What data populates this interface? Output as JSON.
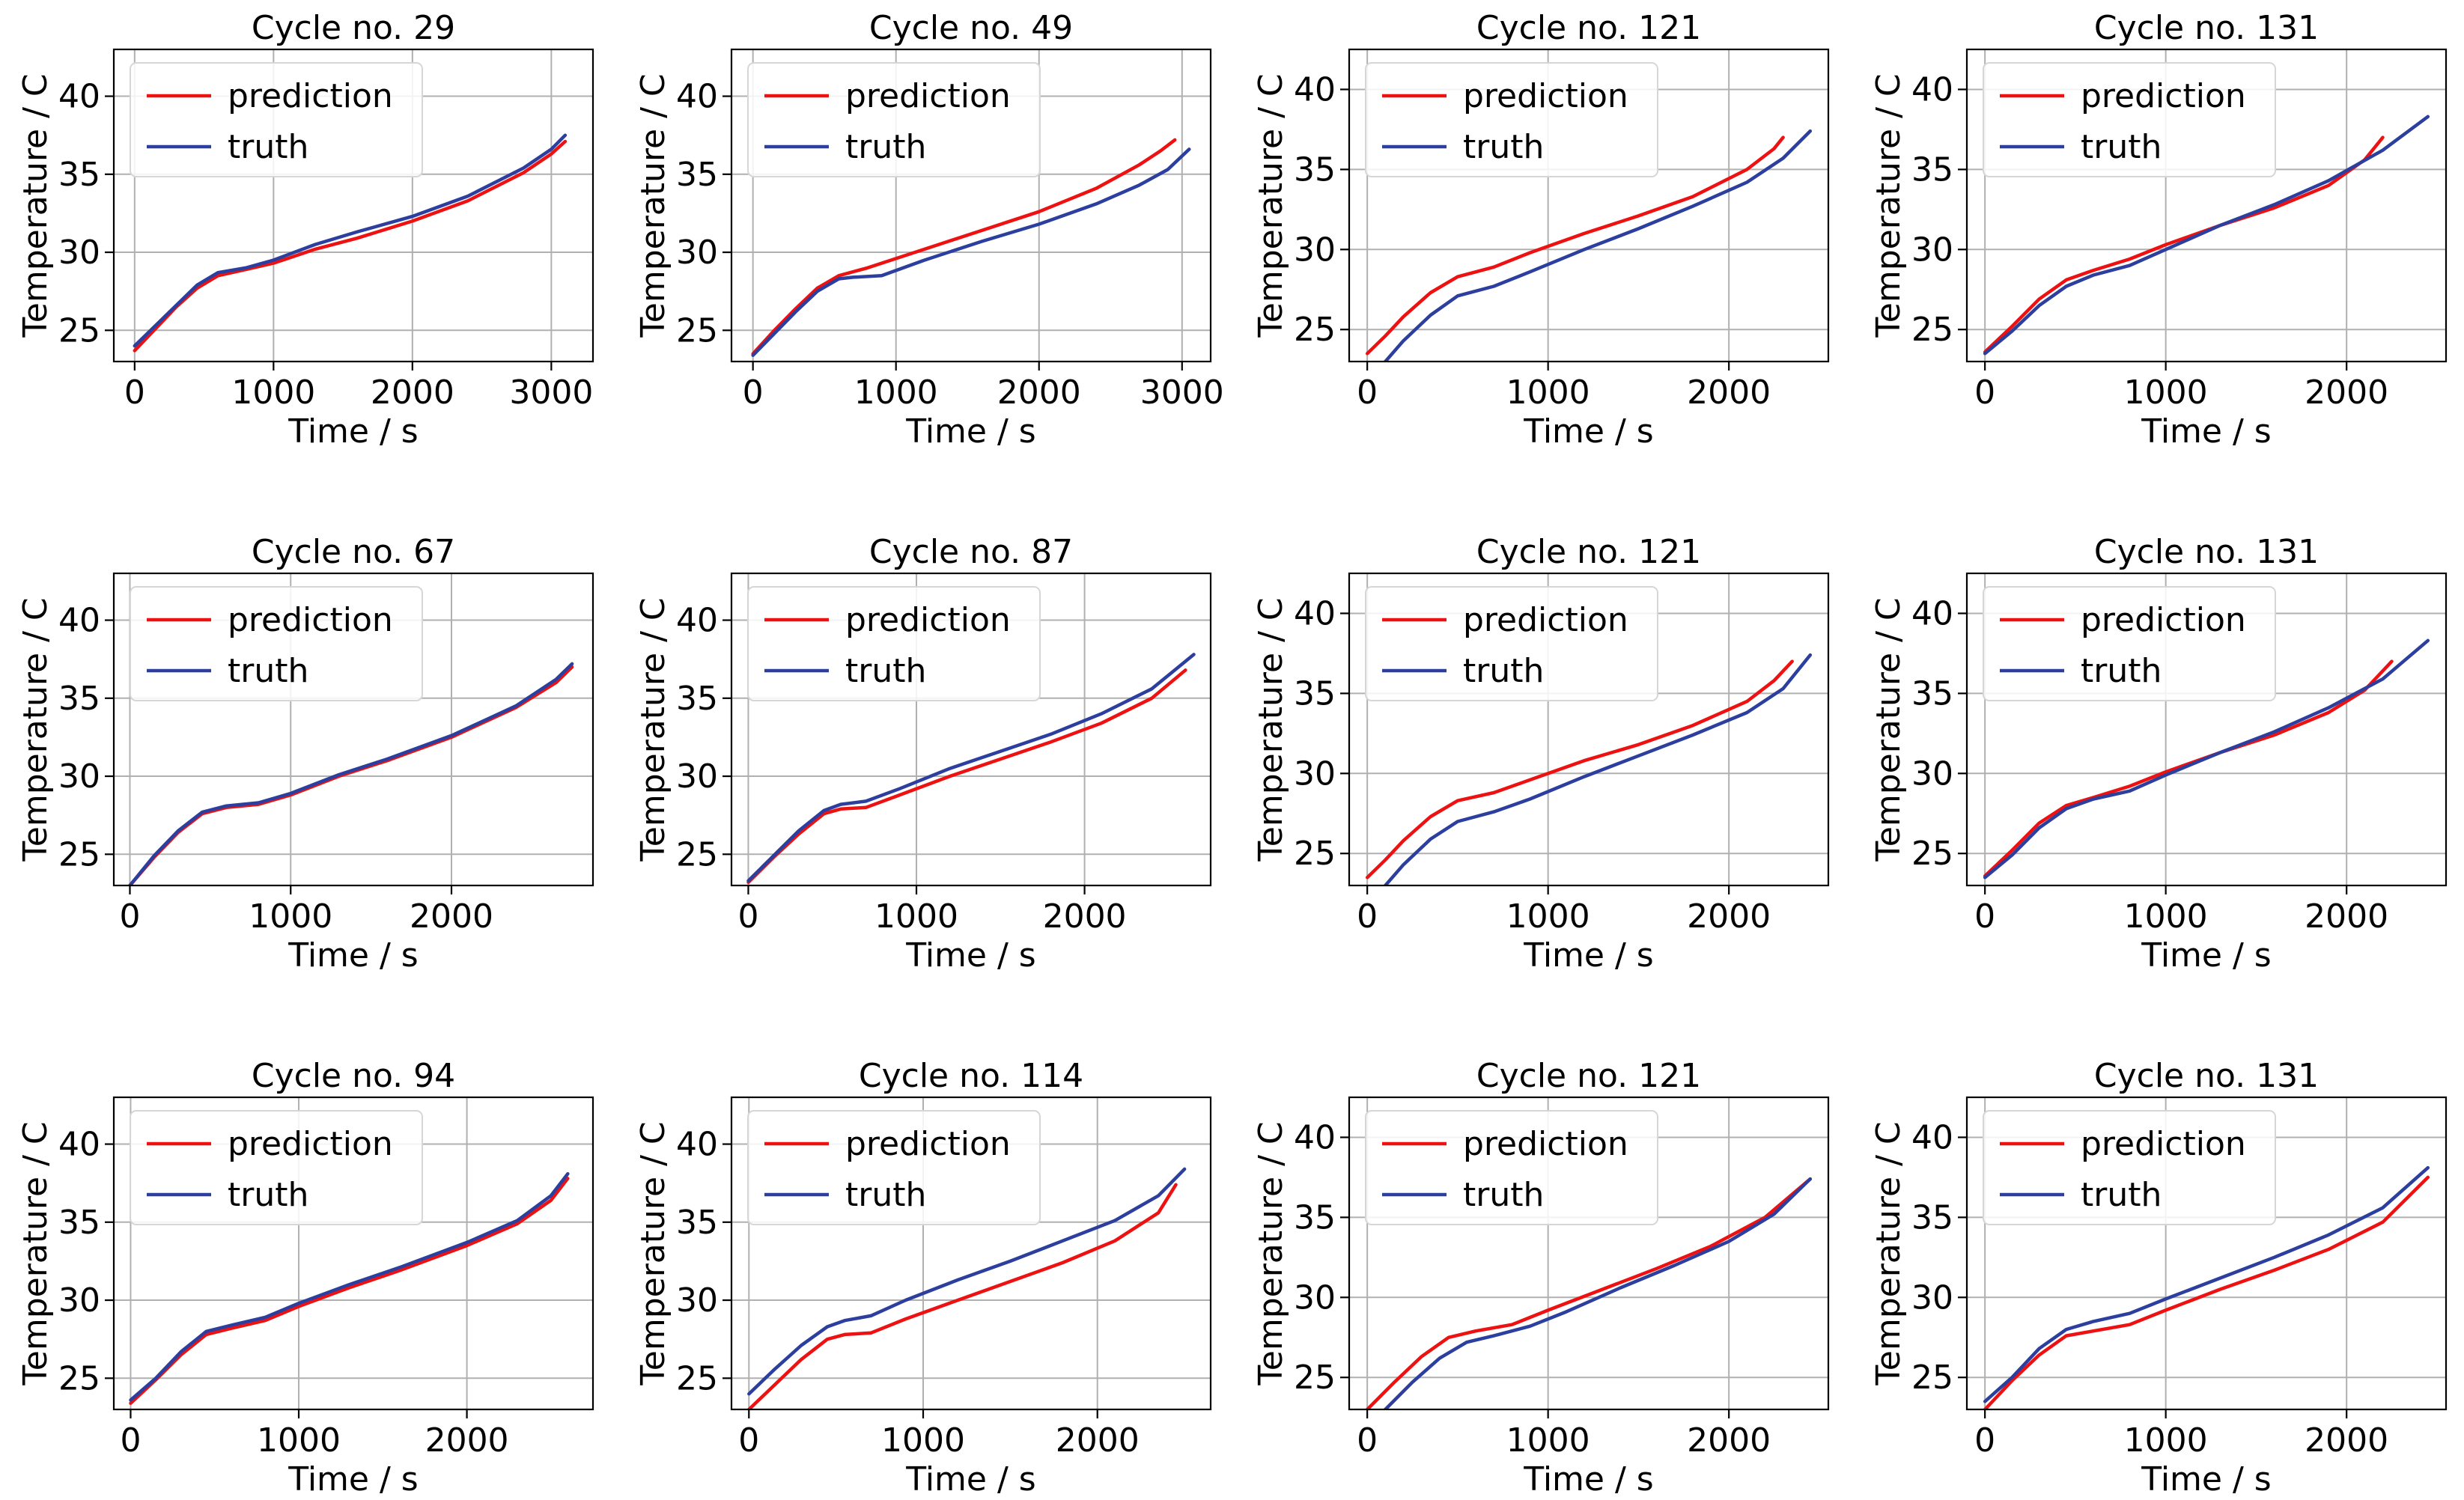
{
  "figure": {
    "rows": 3,
    "cols": 4
  },
  "colors": {
    "prediction": "#ee1111",
    "truth": "#2c3f9e",
    "grid": "#b0b0b0"
  },
  "chart_data": [
    {
      "type": "line",
      "title": "Cycle no. 29",
      "xlabel": "Time / s",
      "ylabel": "Temperature / C",
      "xlim": [
        -150,
        3300
      ],
      "ylim": [
        23,
        43
      ],
      "xticks": [
        0,
        1000,
        2000,
        3000
      ],
      "yticks": [
        25,
        30,
        35,
        40
      ],
      "legend": [
        "prediction",
        "truth"
      ],
      "grid": true,
      "series": [
        {
          "name": "prediction",
          "x": [
            0,
            150,
            300,
            450,
            600,
            800,
            1000,
            1300,
            1600,
            2000,
            2400,
            2800,
            3000,
            3100
          ],
          "y": [
            23.7,
            25.1,
            26.5,
            27.7,
            28.5,
            28.9,
            29.3,
            30.2,
            30.9,
            32.0,
            33.3,
            35.1,
            36.3,
            37.1
          ]
        },
        {
          "name": "truth",
          "x": [
            0,
            150,
            300,
            450,
            600,
            800,
            1000,
            1300,
            1600,
            2000,
            2400,
            2800,
            3000,
            3100
          ],
          "y": [
            24.0,
            25.3,
            26.6,
            27.9,
            28.7,
            29.0,
            29.5,
            30.5,
            31.3,
            32.3,
            33.6,
            35.4,
            36.6,
            37.5
          ]
        }
      ]
    },
    {
      "type": "line",
      "title": "Cycle no. 49",
      "xlabel": "Time / s",
      "ylabel": "Temperature / C",
      "xlim": [
        -150,
        3200
      ],
      "ylim": [
        23,
        43
      ],
      "xticks": [
        0,
        1000,
        2000,
        3000
      ],
      "yticks": [
        25,
        30,
        35,
        40
      ],
      "legend": [
        "prediction",
        "truth"
      ],
      "grid": true,
      "series": [
        {
          "name": "prediction",
          "x": [
            0,
            150,
            300,
            450,
            600,
            800,
            1000,
            1300,
            1600,
            2000,
            2400,
            2700,
            2850,
            2950
          ],
          "y": [
            23.5,
            25.0,
            26.4,
            27.7,
            28.5,
            29.0,
            29.6,
            30.5,
            31.4,
            32.6,
            34.1,
            35.6,
            36.5,
            37.2
          ]
        },
        {
          "name": "truth",
          "x": [
            0,
            150,
            300,
            450,
            600,
            700,
            900,
            1200,
            1600,
            2000,
            2400,
            2700,
            2900,
            3050
          ],
          "y": [
            23.4,
            24.8,
            26.2,
            27.5,
            28.3,
            28.4,
            28.5,
            29.5,
            30.7,
            31.8,
            33.1,
            34.3,
            35.3,
            36.6
          ]
        }
      ]
    },
    {
      "type": "line",
      "title": "Cycle no. 121",
      "xlabel": "Time / s",
      "ylabel": "Temperature / C",
      "xlim": [
        -100,
        2550
      ],
      "ylim": [
        23,
        42.5
      ],
      "xticks": [
        0,
        1000,
        2000
      ],
      "yticks": [
        25,
        30,
        35,
        40
      ],
      "legend": [
        "prediction",
        "truth"
      ],
      "grid": true,
      "series": [
        {
          "name": "prediction",
          "x": [
            0,
            100,
            200,
            350,
            500,
            700,
            900,
            1200,
            1500,
            1800,
            2100,
            2250,
            2300
          ],
          "y": [
            23.5,
            24.6,
            25.8,
            27.3,
            28.3,
            28.9,
            29.8,
            31.0,
            32.1,
            33.3,
            35.0,
            36.3,
            37.0
          ]
        },
        {
          "name": "truth",
          "x": [
            100,
            200,
            350,
            500,
            700,
            900,
            1200,
            1500,
            1800,
            2100,
            2300,
            2450
          ],
          "y": [
            23.0,
            24.3,
            25.9,
            27.1,
            27.7,
            28.6,
            30.0,
            31.3,
            32.7,
            34.2,
            35.7,
            37.4
          ]
        }
      ]
    },
    {
      "type": "line",
      "title": "Cycle no. 131",
      "xlabel": "Time / s",
      "ylabel": "Temperature / C",
      "xlim": [
        -100,
        2550
      ],
      "ylim": [
        23,
        42.5
      ],
      "xticks": [
        0,
        1000,
        2000
      ],
      "yticks": [
        25,
        30,
        35,
        40
      ],
      "legend": [
        "prediction",
        "truth"
      ],
      "grid": true,
      "series": [
        {
          "name": "prediction",
          "x": [
            0,
            150,
            300,
            450,
            600,
            800,
            1000,
            1300,
            1600,
            1900,
            2100,
            2200
          ],
          "y": [
            23.6,
            25.2,
            26.9,
            28.1,
            28.7,
            29.4,
            30.3,
            31.5,
            32.6,
            34.0,
            35.6,
            37.0
          ]
        },
        {
          "name": "truth",
          "x": [
            0,
            150,
            300,
            450,
            600,
            800,
            1000,
            1300,
            1600,
            1900,
            2200,
            2450
          ],
          "y": [
            23.5,
            24.9,
            26.5,
            27.7,
            28.4,
            29.0,
            30.0,
            31.5,
            32.8,
            34.3,
            36.2,
            38.3
          ]
        }
      ]
    },
    {
      "type": "line",
      "title": "Cycle no. 67",
      "xlabel": "Time / s",
      "ylabel": "Temperature / C",
      "xlim": [
        -100,
        2880
      ],
      "ylim": [
        23,
        43
      ],
      "xticks": [
        0,
        1000,
        2000
      ],
      "yticks": [
        25,
        30,
        35,
        40
      ],
      "legend": [
        "prediction",
        "truth"
      ],
      "grid": true,
      "series": [
        {
          "name": "prediction",
          "x": [
            0,
            150,
            300,
            450,
            600,
            800,
            1000,
            1300,
            1600,
            2000,
            2400,
            2650,
            2750
          ],
          "y": [
            23.0,
            24.8,
            26.4,
            27.6,
            28.0,
            28.2,
            28.8,
            30.0,
            31.0,
            32.5,
            34.4,
            36.0,
            37.0
          ]
        },
        {
          "name": "truth",
          "x": [
            0,
            150,
            300,
            450,
            600,
            800,
            1000,
            1300,
            1600,
            2000,
            2400,
            2650,
            2750
          ],
          "y": [
            23.0,
            24.9,
            26.5,
            27.7,
            28.1,
            28.3,
            28.9,
            30.1,
            31.1,
            32.6,
            34.5,
            36.2,
            37.2
          ]
        }
      ]
    },
    {
      "type": "line",
      "title": "Cycle no. 87",
      "xlabel": "Time / s",
      "ylabel": "Temperature / C",
      "xlim": [
        -100,
        2750
      ],
      "ylim": [
        23,
        43
      ],
      "xticks": [
        0,
        1000,
        2000
      ],
      "yticks": [
        25,
        30,
        35,
        40
      ],
      "legend": [
        "prediction",
        "truth"
      ],
      "grid": true,
      "series": [
        {
          "name": "prediction",
          "x": [
            0,
            150,
            300,
            450,
            550,
            700,
            900,
            1200,
            1500,
            1800,
            2100,
            2400,
            2600
          ],
          "y": [
            23.2,
            24.8,
            26.3,
            27.6,
            27.9,
            28.0,
            28.8,
            30.0,
            31.1,
            32.2,
            33.4,
            35.0,
            36.8
          ]
        },
        {
          "name": "truth",
          "x": [
            0,
            150,
            300,
            450,
            550,
            700,
            900,
            1200,
            1500,
            1800,
            2100,
            2400,
            2650
          ],
          "y": [
            23.3,
            24.9,
            26.5,
            27.8,
            28.2,
            28.4,
            29.2,
            30.5,
            31.6,
            32.7,
            34.0,
            35.6,
            37.8
          ]
        }
      ]
    },
    {
      "type": "line",
      "title": "Cycle no. 121",
      "xlabel": "Time / s",
      "ylabel": "Temperature / C",
      "xlim": [
        -100,
        2550
      ],
      "ylim": [
        23,
        42.5
      ],
      "xticks": [
        0,
        1000,
        2000
      ],
      "yticks": [
        25,
        30,
        35,
        40
      ],
      "legend": [
        "prediction",
        "truth"
      ],
      "grid": true,
      "series": [
        {
          "name": "prediction",
          "x": [
            0,
            100,
            200,
            350,
            500,
            700,
            900,
            1200,
            1500,
            1800,
            2100,
            2250,
            2350
          ],
          "y": [
            23.5,
            24.6,
            25.8,
            27.3,
            28.3,
            28.8,
            29.6,
            30.8,
            31.8,
            33.0,
            34.5,
            35.8,
            37.0
          ]
        },
        {
          "name": "truth",
          "x": [
            100,
            200,
            350,
            500,
            700,
            900,
            1200,
            1500,
            1800,
            2100,
            2300,
            2450
          ],
          "y": [
            23.0,
            24.3,
            25.9,
            27.0,
            27.6,
            28.4,
            29.8,
            31.1,
            32.4,
            33.8,
            35.3,
            37.4
          ]
        }
      ]
    },
    {
      "type": "line",
      "title": "Cycle no. 131",
      "xlabel": "Time / s",
      "ylabel": "Temperature / C",
      "xlim": [
        -100,
        2550
      ],
      "ylim": [
        23,
        42.5
      ],
      "xticks": [
        0,
        1000,
        2000
      ],
      "yticks": [
        25,
        30,
        35,
        40
      ],
      "legend": [
        "prediction",
        "truth"
      ],
      "grid": true,
      "series": [
        {
          "name": "prediction",
          "x": [
            0,
            150,
            300,
            450,
            600,
            800,
            1000,
            1300,
            1600,
            1900,
            2100,
            2250
          ],
          "y": [
            23.6,
            25.2,
            26.9,
            28.0,
            28.5,
            29.2,
            30.1,
            31.3,
            32.4,
            33.8,
            35.2,
            37.0
          ]
        },
        {
          "name": "truth",
          "x": [
            0,
            150,
            300,
            450,
            600,
            800,
            1000,
            1300,
            1600,
            1900,
            2200,
            2450
          ],
          "y": [
            23.5,
            24.9,
            26.6,
            27.8,
            28.4,
            28.9,
            29.9,
            31.3,
            32.6,
            34.1,
            35.9,
            38.3
          ]
        }
      ]
    },
    {
      "type": "line",
      "title": "Cycle no. 94",
      "xlabel": "Time / s",
      "ylabel": "Temperature / C",
      "xlim": [
        -100,
        2750
      ],
      "ylim": [
        23,
        43
      ],
      "xticks": [
        0,
        1000,
        2000
      ],
      "yticks": [
        25,
        30,
        35,
        40
      ],
      "legend": [
        "prediction",
        "truth"
      ],
      "grid": true,
      "series": [
        {
          "name": "prediction",
          "x": [
            0,
            150,
            300,
            450,
            600,
            800,
            1000,
            1300,
            1600,
            2000,
            2300,
            2500,
            2600
          ],
          "y": [
            23.4,
            24.9,
            26.5,
            27.8,
            28.2,
            28.7,
            29.6,
            30.8,
            31.9,
            33.5,
            34.9,
            36.4,
            37.8
          ]
        },
        {
          "name": "truth",
          "x": [
            0,
            150,
            300,
            450,
            600,
            800,
            1000,
            1300,
            1600,
            2000,
            2300,
            2500,
            2600
          ],
          "y": [
            23.6,
            25.0,
            26.7,
            28.0,
            28.4,
            28.9,
            29.8,
            31.0,
            32.1,
            33.7,
            35.1,
            36.7,
            38.1
          ]
        }
      ]
    },
    {
      "type": "line",
      "title": "Cycle no. 114",
      "xlabel": "Time / s",
      "ylabel": "Temperature / C",
      "xlim": [
        -100,
        2650
      ],
      "ylim": [
        23,
        43
      ],
      "xticks": [
        0,
        1000,
        2000
      ],
      "yticks": [
        25,
        30,
        35,
        40
      ],
      "legend": [
        "prediction",
        "truth"
      ],
      "grid": true,
      "series": [
        {
          "name": "prediction",
          "x": [
            0,
            150,
            300,
            450,
            550,
            700,
            900,
            1200,
            1500,
            1800,
            2100,
            2350,
            2450
          ],
          "y": [
            23.0,
            24.6,
            26.2,
            27.5,
            27.8,
            27.9,
            28.8,
            30.0,
            31.2,
            32.4,
            33.8,
            35.6,
            37.4
          ]
        },
        {
          "name": "truth",
          "x": [
            0,
            150,
            300,
            450,
            550,
            700,
            900,
            1200,
            1500,
            1800,
            2100,
            2350,
            2500
          ],
          "y": [
            24.0,
            25.6,
            27.1,
            28.3,
            28.7,
            29.0,
            30.0,
            31.3,
            32.5,
            33.8,
            35.1,
            36.7,
            38.4
          ]
        }
      ]
    },
    {
      "type": "line",
      "title": "Cycle no. 121",
      "xlabel": "Time / s",
      "ylabel": "Temperature / C",
      "xlim": [
        -100,
        2550
      ],
      "ylim": [
        23,
        42.5
      ],
      "xticks": [
        0,
        1000,
        2000
      ],
      "yticks": [
        25,
        30,
        35,
        40
      ],
      "legend": [
        "prediction",
        "truth"
      ],
      "grid": true,
      "series": [
        {
          "name": "prediction",
          "x": [
            0,
            150,
            300,
            450,
            600,
            800,
            1000,
            1300,
            1600,
            1900,
            2200,
            2450
          ],
          "y": [
            23.0,
            24.7,
            26.3,
            27.5,
            27.9,
            28.3,
            29.2,
            30.5,
            31.8,
            33.2,
            35.0,
            37.4
          ]
        },
        {
          "name": "truth",
          "x": [
            100,
            250,
            400,
            550,
            700,
            900,
            1100,
            1400,
            1700,
            2000,
            2250,
            2450
          ],
          "y": [
            23.0,
            24.7,
            26.2,
            27.2,
            27.6,
            28.2,
            29.1,
            30.6,
            32.0,
            33.5,
            35.2,
            37.4
          ]
        }
      ]
    },
    {
      "type": "line",
      "title": "Cycle no. 131",
      "xlabel": "Time / s",
      "ylabel": "Temperature / C",
      "xlim": [
        -100,
        2550
      ],
      "ylim": [
        23,
        42.5
      ],
      "xticks": [
        0,
        1000,
        2000
      ],
      "yticks": [
        25,
        30,
        35,
        40
      ],
      "legend": [
        "prediction",
        "truth"
      ],
      "grid": true,
      "series": [
        {
          "name": "prediction",
          "x": [
            0,
            150,
            300,
            450,
            600,
            800,
            1000,
            1300,
            1600,
            1900,
            2200,
            2450
          ],
          "y": [
            23.0,
            24.8,
            26.4,
            27.6,
            27.9,
            28.3,
            29.2,
            30.5,
            31.7,
            33.0,
            34.7,
            37.5
          ]
        },
        {
          "name": "truth",
          "x": [
            0,
            150,
            300,
            450,
            600,
            800,
            1000,
            1300,
            1600,
            1900,
            2200,
            2450
          ],
          "y": [
            23.5,
            25.0,
            26.8,
            28.0,
            28.5,
            29.0,
            29.9,
            31.2,
            32.5,
            33.9,
            35.6,
            38.1
          ]
        }
      ]
    }
  ]
}
